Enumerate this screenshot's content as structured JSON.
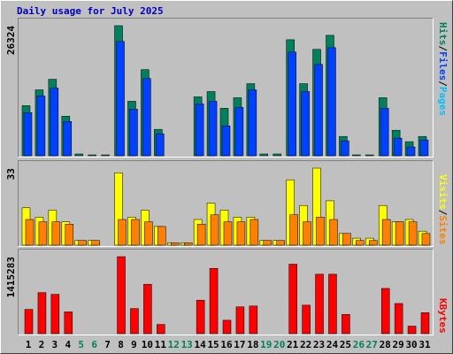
{
  "title": "Daily usage for July 2025",
  "chart_data": [
    {
      "type": "bar",
      "ylim": [
        0,
        26324
      ],
      "yticks": [
        26324
      ],
      "legend_separator": "/",
      "series": [
        {
          "name": "Hits",
          "color": "#00805c",
          "values": [
            10140,
            13340,
            15480,
            8000,
            360,
            180,
            180,
            26324,
            11030,
            17430,
            5340,
            0,
            0,
            11920,
            12990,
            9610,
            11740,
            14590,
            360,
            360,
            23480,
            14590,
            21530,
            24370,
            3910,
            180,
            180,
            11740,
            5160,
            2850,
            3910
          ]
        },
        {
          "name": "Files",
          "color": "#0040ff",
          "values": [
            8720,
            12100,
            13700,
            6940,
            0,
            0,
            0,
            23130,
            9430,
            15650,
            4450,
            0,
            0,
            10500,
            11030,
            6050,
            9780,
            13340,
            0,
            0,
            20990,
            12990,
            18500,
            21880,
            3020,
            0,
            0,
            9610,
            3560,
            1780,
            3200
          ]
        },
        {
          "name": "Pages",
          "color": "#00c0ff",
          "values": [
            0,
            0,
            0,
            0,
            0,
            0,
            0,
            0,
            0,
            0,
            0,
            0,
            0,
            0,
            0,
            0,
            0,
            0,
            0,
            0,
            0,
            0,
            0,
            0,
            0,
            0,
            0,
            0,
            0,
            0,
            0
          ]
        }
      ]
    },
    {
      "type": "bar",
      "ylim": [
        0,
        33
      ],
      "yticks": [
        33
      ],
      "legend_separator": "/",
      "series": [
        {
          "name": "Visits",
          "color": "#ffff00",
          "values": [
            16,
            12,
            15,
            10,
            2,
            2,
            0,
            31,
            12,
            15,
            8,
            1,
            1,
            11,
            18,
            15,
            12,
            12,
            2,
            2,
            28,
            17,
            33,
            19,
            5,
            3,
            3,
            17,
            10,
            11,
            6
          ]
        },
        {
          "name": "Sites",
          "color": "#ff8000",
          "values": [
            11,
            10,
            10,
            9,
            2,
            2,
            0,
            11,
            11,
            10,
            8,
            1,
            1,
            9,
            13,
            10,
            10,
            11,
            2,
            2,
            13,
            10,
            12,
            11,
            5,
            2,
            2,
            11,
            10,
            10,
            5
          ]
        }
      ]
    },
    {
      "type": "bar",
      "ylim": [
        0,
        1415283
      ],
      "yticks": [
        1415283
      ],
      "legend_separator": "/",
      "series": [
        {
          "name": "KBytes",
          "color": "#ff0000",
          "values": [
            446000,
            754000,
            723000,
            400000,
            0,
            0,
            0,
            1415283,
            461500,
            907700,
            169000,
            0,
            0,
            615000,
            1200000,
            246000,
            492000,
            508000,
            0,
            0,
            1277000,
            523000,
            1092000,
            1092000,
            354000,
            0,
            0,
            831000,
            554000,
            138000,
            385000
          ]
        }
      ],
      "categories": [
        "1",
        "2",
        "3",
        "4",
        "5",
        "6",
        "7",
        "8",
        "9",
        "10",
        "11",
        "12",
        "13",
        "14",
        "15",
        "16",
        "17",
        "18",
        "19",
        "20",
        "21",
        "22",
        "23",
        "24",
        "25",
        "26",
        "27",
        "28",
        "29",
        "30",
        "31"
      ],
      "category_colors": [
        "#000000",
        "#000000",
        "#000000",
        "#000000",
        "#00805c",
        "#00805c",
        "#000000",
        "#000000",
        "#000000",
        "#000000",
        "#000000",
        "#00805c",
        "#00805c",
        "#000000",
        "#000000",
        "#000000",
        "#000000",
        "#000000",
        "#00805c",
        "#00805c",
        "#000000",
        "#000000",
        "#000000",
        "#000000",
        "#000000",
        "#00805c",
        "#00805c",
        "#000000",
        "#000000",
        "#000000",
        "#000000"
      ]
    }
  ]
}
